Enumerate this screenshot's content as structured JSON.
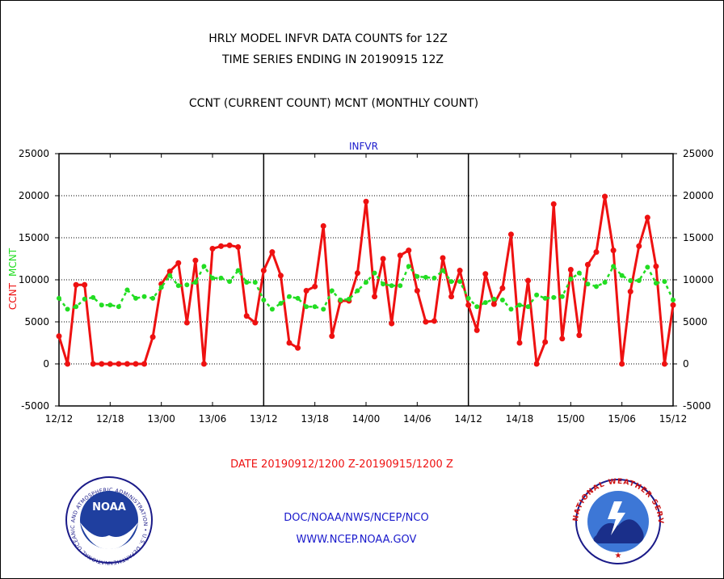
{
  "header": {
    "title_line1": "HRLY MODEL INFVR DATA COUNTS for 12Z",
    "title_line2": "TIME SERIES ENDING IN 20190915 12Z",
    "subtitle": "CCNT (CURRENT COUNT) MCNT (MONTHLY COUNT)"
  },
  "chart_data": {
    "type": "line",
    "title": "INFVR",
    "ylabel": "CCNT  MCNT",
    "ylabel_parts": [
      "CCNT",
      "MCNT"
    ],
    "xlim": [
      0,
      72
    ],
    "ylim": [
      -5000,
      25000
    ],
    "yticks": [
      25000,
      20000,
      15000,
      10000,
      5000,
      0,
      -5000
    ],
    "xticks": [
      {
        "x": 0,
        "label": "12/12"
      },
      {
        "x": 6,
        "label": "12/18"
      },
      {
        "x": 12,
        "label": "13/00"
      },
      {
        "x": 18,
        "label": "13/06"
      },
      {
        "x": 24,
        "label": "13/12"
      },
      {
        "x": 30,
        "label": "13/18"
      },
      {
        "x": 36,
        "label": "14/00"
      },
      {
        "x": 42,
        "label": "14/06"
      },
      {
        "x": 48,
        "label": "14/12"
      },
      {
        "x": 54,
        "label": "14/18"
      },
      {
        "x": 60,
        "label": "15/00"
      },
      {
        "x": 66,
        "label": "15/06"
      },
      {
        "x": 72,
        "label": "15/12"
      }
    ],
    "day_dividers": [
      24,
      48
    ],
    "grid": true,
    "series": [
      {
        "name": "CCNT",
        "color": "#ee1111",
        "values": [
          3300,
          0,
          9400,
          9400,
          0,
          0,
          0,
          0,
          0,
          0,
          0,
          3200,
          9500,
          11000,
          12000,
          4900,
          12300,
          0,
          13700,
          14000,
          14100,
          13900,
          5700,
          4900,
          11100,
          13300,
          10500,
          2500,
          1900,
          8700,
          9200,
          16400,
          3300,
          7500,
          7500,
          10800,
          19300,
          8000,
          12500,
          4800,
          12900,
          13500,
          8700,
          5000,
          5100,
          12600,
          8000,
          11100,
          7000,
          4000,
          10700,
          7100,
          9000,
          15400,
          2500,
          9900,
          0,
          2600,
          19000,
          3000,
          11200,
          3400,
          11800,
          13300,
          19900,
          13500,
          0,
          8600,
          14000,
          17400,
          11600,
          0,
          7000
        ]
      },
      {
        "name": "MCNT",
        "color": "#22dd22",
        "values": [
          7800,
          6500,
          6800,
          7700,
          7900,
          7000,
          7000,
          6800,
          8800,
          7800,
          8000,
          7800,
          9100,
          10500,
          9300,
          9400,
          9700,
          11600,
          10200,
          10200,
          9800,
          11100,
          9700,
          9700,
          7600,
          6500,
          7200,
          8000,
          7800,
          6800,
          6800,
          6500,
          8700,
          7600,
          7700,
          8700,
          9700,
          10800,
          9500,
          9300,
          9300,
          11600,
          10400,
          10300,
          10200,
          11100,
          9800,
          9800,
          7800,
          6800,
          7300,
          7700,
          7600,
          6500,
          7000,
          6800,
          8200,
          7800,
          7900,
          8000,
          10100,
          10800,
          9500,
          9200,
          9700,
          11600,
          10500,
          9900,
          9900,
          11500,
          9600,
          9800,
          7600
        ]
      }
    ],
    "date_range": "DATE 20190912/1200 Z-20190915/1200 Z"
  },
  "footer": {
    "line1": "DOC/NOAA/NWS/NCEP/NCO",
    "line2": "WWW.NCEP.NOAA.GOV",
    "noaa_logo_text": "NOAA",
    "noaa_ring_text": "NATIONAL OCEANIC AND ATMOSPHERIC ADMINISTRATION • U.S. DEPARTMENT OF COMMERCE •",
    "nws_ring_text": "NATIONAL WEATHER SERVICE"
  },
  "colors": {
    "title_text": "#000000",
    "accent_blue": "#1a1acc",
    "ccnt_red": "#ee1111",
    "mcnt_green": "#22dd22"
  }
}
